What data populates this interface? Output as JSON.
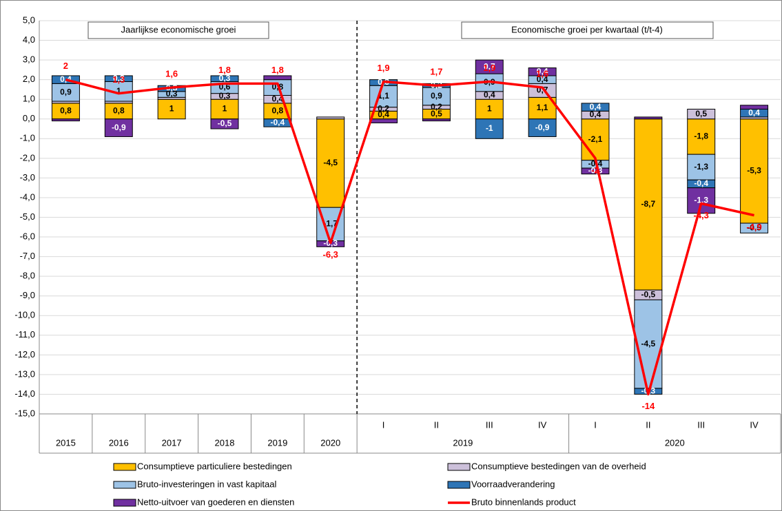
{
  "chart_data": {
    "type": "bar",
    "stacked": true,
    "panel_titles": [
      "Jaarlijkse economische groei",
      "Economische groei per kwartaal (t/t-4)"
    ],
    "categories": [
      "2015",
      "2016",
      "2017",
      "2018",
      "2019",
      "2020",
      "I",
      "II",
      "III",
      "IV",
      "I",
      "II",
      "III",
      "IV"
    ],
    "x_groups": [
      {
        "label": "2019",
        "from": 6,
        "to": 9
      },
      {
        "label": "2020",
        "from": 10,
        "to": 13
      }
    ],
    "ylim": [
      -15,
      5
    ],
    "yticks": [
      {
        "value": 5,
        "label": "5,0"
      },
      {
        "value": 4,
        "label": "4,0"
      },
      {
        "value": 3,
        "label": "3,0"
      },
      {
        "value": 2,
        "label": "2,0"
      },
      {
        "value": 1,
        "label": "1,0"
      },
      {
        "value": 0,
        "label": "0,0"
      },
      {
        "value": -1,
        "label": "-1,0"
      },
      {
        "value": -2,
        "label": "-2,0"
      },
      {
        "value": -3,
        "label": "-3,0"
      },
      {
        "value": -4,
        "label": "-4,0"
      },
      {
        "value": -5,
        "label": "-5,0"
      },
      {
        "value": -6,
        "label": "-6,0"
      },
      {
        "value": -7,
        "label": "-7,0"
      },
      {
        "value": -8,
        "label": "-8,0"
      },
      {
        "value": -9,
        "label": "-9,0"
      },
      {
        "value": -10,
        "label": "-10,0"
      },
      {
        "value": -11,
        "label": "-11,0"
      },
      {
        "value": -12,
        "label": "-12,0"
      },
      {
        "value": -13,
        "label": "-13,0"
      },
      {
        "value": -14,
        "label": "-14,0"
      },
      {
        "value": -15,
        "label": "-15,0"
      }
    ],
    "grid": true,
    "series": [
      {
        "name": "Consumptieve particuliere bestedingen",
        "color": "#ffc000",
        "label_color": "#000000",
        "values": [
          0.8,
          0.8,
          1,
          1,
          0.8,
          -4.5,
          0.4,
          0.5,
          1,
          1.1,
          -2.1,
          -8.7,
          -1.8,
          -5.3
        ],
        "value_labels": [
          "0,8",
          "0,8",
          "1",
          "1",
          "0,8",
          "-4,5",
          "0,4",
          "0,5",
          "1",
          "1,1",
          "-2,1",
          "-8,7",
          "-1,8",
          "-5,3"
        ]
      },
      {
        "name": "Consumptieve bestedingen van de overheid",
        "color": "#ccc0da",
        "label_color": "#000000",
        "values": [
          0.1,
          0.1,
          0.1,
          0.3,
          0.4,
          0.1,
          0.2,
          0.2,
          0.4,
          0.7,
          0.4,
          -0.5,
          0.5,
          0.1
        ],
        "value_labels": [
          null,
          null,
          null,
          "0,3",
          "0,4",
          null,
          "0,2",
          "0,2",
          "0,4",
          "0,7",
          "0,4",
          "-0,5",
          "0,5",
          null
        ]
      },
      {
        "name": "Bruto-investeringen in vast kapitaal",
        "color": "#9dc3e6",
        "label_color": "#000000",
        "values": [
          0.9,
          1,
          0.3,
          0.6,
          0.8,
          -1.7,
          1.1,
          0.9,
          0.9,
          0.4,
          -0.4,
          -4.5,
          -1.3,
          -0.5
        ],
        "value_labels": [
          "0,9",
          "1",
          "0,3",
          "0,6",
          "0,8",
          "-1,7",
          "1,1",
          "0,9",
          "0,9",
          "0,4",
          "-0,4",
          "-4,5",
          "-1,3",
          "-0,5"
        ]
      },
      {
        "name": "Voorraadverandering",
        "color": "#2e75b6",
        "label_color": "#ffffff",
        "values": [
          0.4,
          0.3,
          0.3,
          0.3,
          -0.4,
          0,
          0.3,
          0.2,
          -1,
          -0.9,
          0.4,
          -0.3,
          -0.4,
          0.4
        ],
        "value_labels": [
          "0,4",
          "0,3",
          "0,3",
          "0,3",
          "-0,4",
          null,
          "0,3",
          "0,2",
          "-1",
          "-0,9",
          "0,4",
          "-0,3",
          "-0,4",
          "0,4"
        ]
      },
      {
        "name": "Netto-uitvoer van goederen en diensten",
        "color": "#7030a0",
        "label_color": "#ffffff",
        "values": [
          -0.1,
          -0.9,
          0,
          -0.5,
          0.2,
          -0.3,
          -0.2,
          -0.1,
          0.7,
          0.4,
          -0.3,
          0.1,
          -1.3,
          0.2
        ],
        "value_labels": [
          null,
          "-0,9",
          null,
          "-0,5",
          null,
          "-0,3",
          null,
          null,
          "0,7",
          "0,4",
          "-0,3",
          null,
          "-1,3",
          null
        ]
      },
      {
        "name": "Bruto binnenlands product",
        "color": "#ff0000",
        "type": "line",
        "values": [
          2,
          1.3,
          1.6,
          1.8,
          1.8,
          -6.3,
          1.9,
          1.7,
          1.9,
          1.6,
          -2,
          -14,
          -4.3,
          -4.9
        ],
        "value_labels": [
          "2",
          "1,3",
          "1,6",
          "1,8",
          "1,8",
          "-6,3",
          "1,9",
          "1,7",
          "1,9",
          "1,6",
          "-2",
          "-14",
          "-4,3",
          "-4,9"
        ]
      }
    ]
  }
}
